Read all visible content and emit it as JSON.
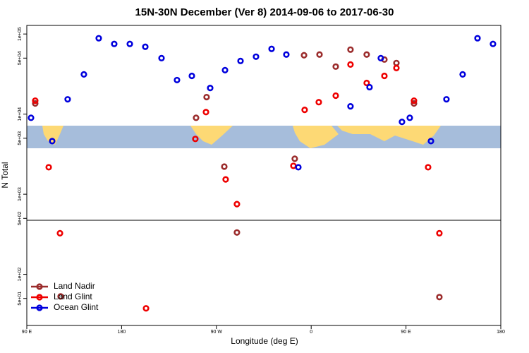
{
  "chart_data": {
    "type": "scatter",
    "title": "15N-30N December (Ver 8)   2014-09-06 to 2017-06-30",
    "x_label": "Longitude (deg E)",
    "y_label": "N Total",
    "log_y": true,
    "legend": "bottom-left",
    "xlim": [
      90,
      540
    ],
    "xticks": [
      {
        "value": 90,
        "label": "90 E"
      },
      180,
      {
        "value": 270,
        "label": "90 W"
      },
      {
        "value": 360,
        "label": "0"
      },
      {
        "value": 450,
        "label": "90 E"
      },
      {
        "value": 540,
        "label": "180"
      }
    ],
    "ylim": [
      23,
      128000
    ],
    "yticks": [
      {
        "value": 50,
        "label": "5e+01"
      },
      {
        "value": 100,
        "label": "1e+02"
      },
      {
        "value": 500,
        "label": "5e+02"
      },
      {
        "value": 1000,
        "label": "1e+03"
      },
      {
        "value": 5000,
        "label": "5e+03"
      },
      {
        "value": 10000,
        "label": "1e+04"
      },
      {
        "value": 50000,
        "label": "5e+04"
      },
      {
        "value": 100000,
        "label": "1e+05"
      }
    ],
    "series": [
      {
        "name": "Land Nadir",
        "color": "#9b2c2c",
        "x": [
          98,
          122.1,
          250.7,
          260.7,
          277.5,
          289.5,
          344.4,
          353.2,
          367.9,
          383.3,
          397.3,
          412.7,
          429.5,
          440.9,
          457.6,
          481.7
        ],
        "y": [
          13600,
          53,
          9000,
          16300,
          2210,
          333,
          2770,
          54300,
          55400,
          39200,
          63800,
          55400,
          48000,
          43400,
          13600,
          52
        ]
      },
      {
        "name": "Land Glint",
        "color": "#ee0000",
        "x": [
          98,
          110.8,
          121.5,
          203.2,
          250,
          260.1,
          278.8,
          289.5,
          343.1,
          353.8,
          367.2,
          383.3,
          397.3,
          412.7,
          429.5,
          440.9,
          457.6,
          471,
          481.7
        ],
        "y": [
          14700,
          2170,
          326,
          37.6,
          4900,
          10600,
          1530,
          752,
          2260,
          11300,
          14100,
          17000,
          41600,
          24500,
          30000,
          37600,
          14700,
          2170,
          326
        ]
      },
      {
        "name": "Ocean Glint",
        "color": "#0000dd",
        "x": [
          94,
          114.1,
          128.8,
          144.2,
          158.3,
          173,
          187.8,
          202.5,
          217.9,
          232.6,
          246.7,
          264.1,
          278.2,
          292.9,
          307.6,
          322.4,
          336.4,
          347.8,
          397.3,
          415.4,
          426.1,
          446.2,
          453.6,
          473.7,
          488.4,
          503.8,
          517.9,
          532.6
        ],
        "y": [
          9000,
          4600,
          15300,
          31300,
          88500,
          75200,
          75200,
          69300,
          50000,
          26600,
          30000,
          21200,
          35400,
          46100,
          52100,
          65200,
          55400,
          2170,
          12500,
          21700,
          50000,
          8000,
          9000,
          4600,
          15300,
          31300,
          88500,
          75200
        ]
      }
    ]
  }
}
